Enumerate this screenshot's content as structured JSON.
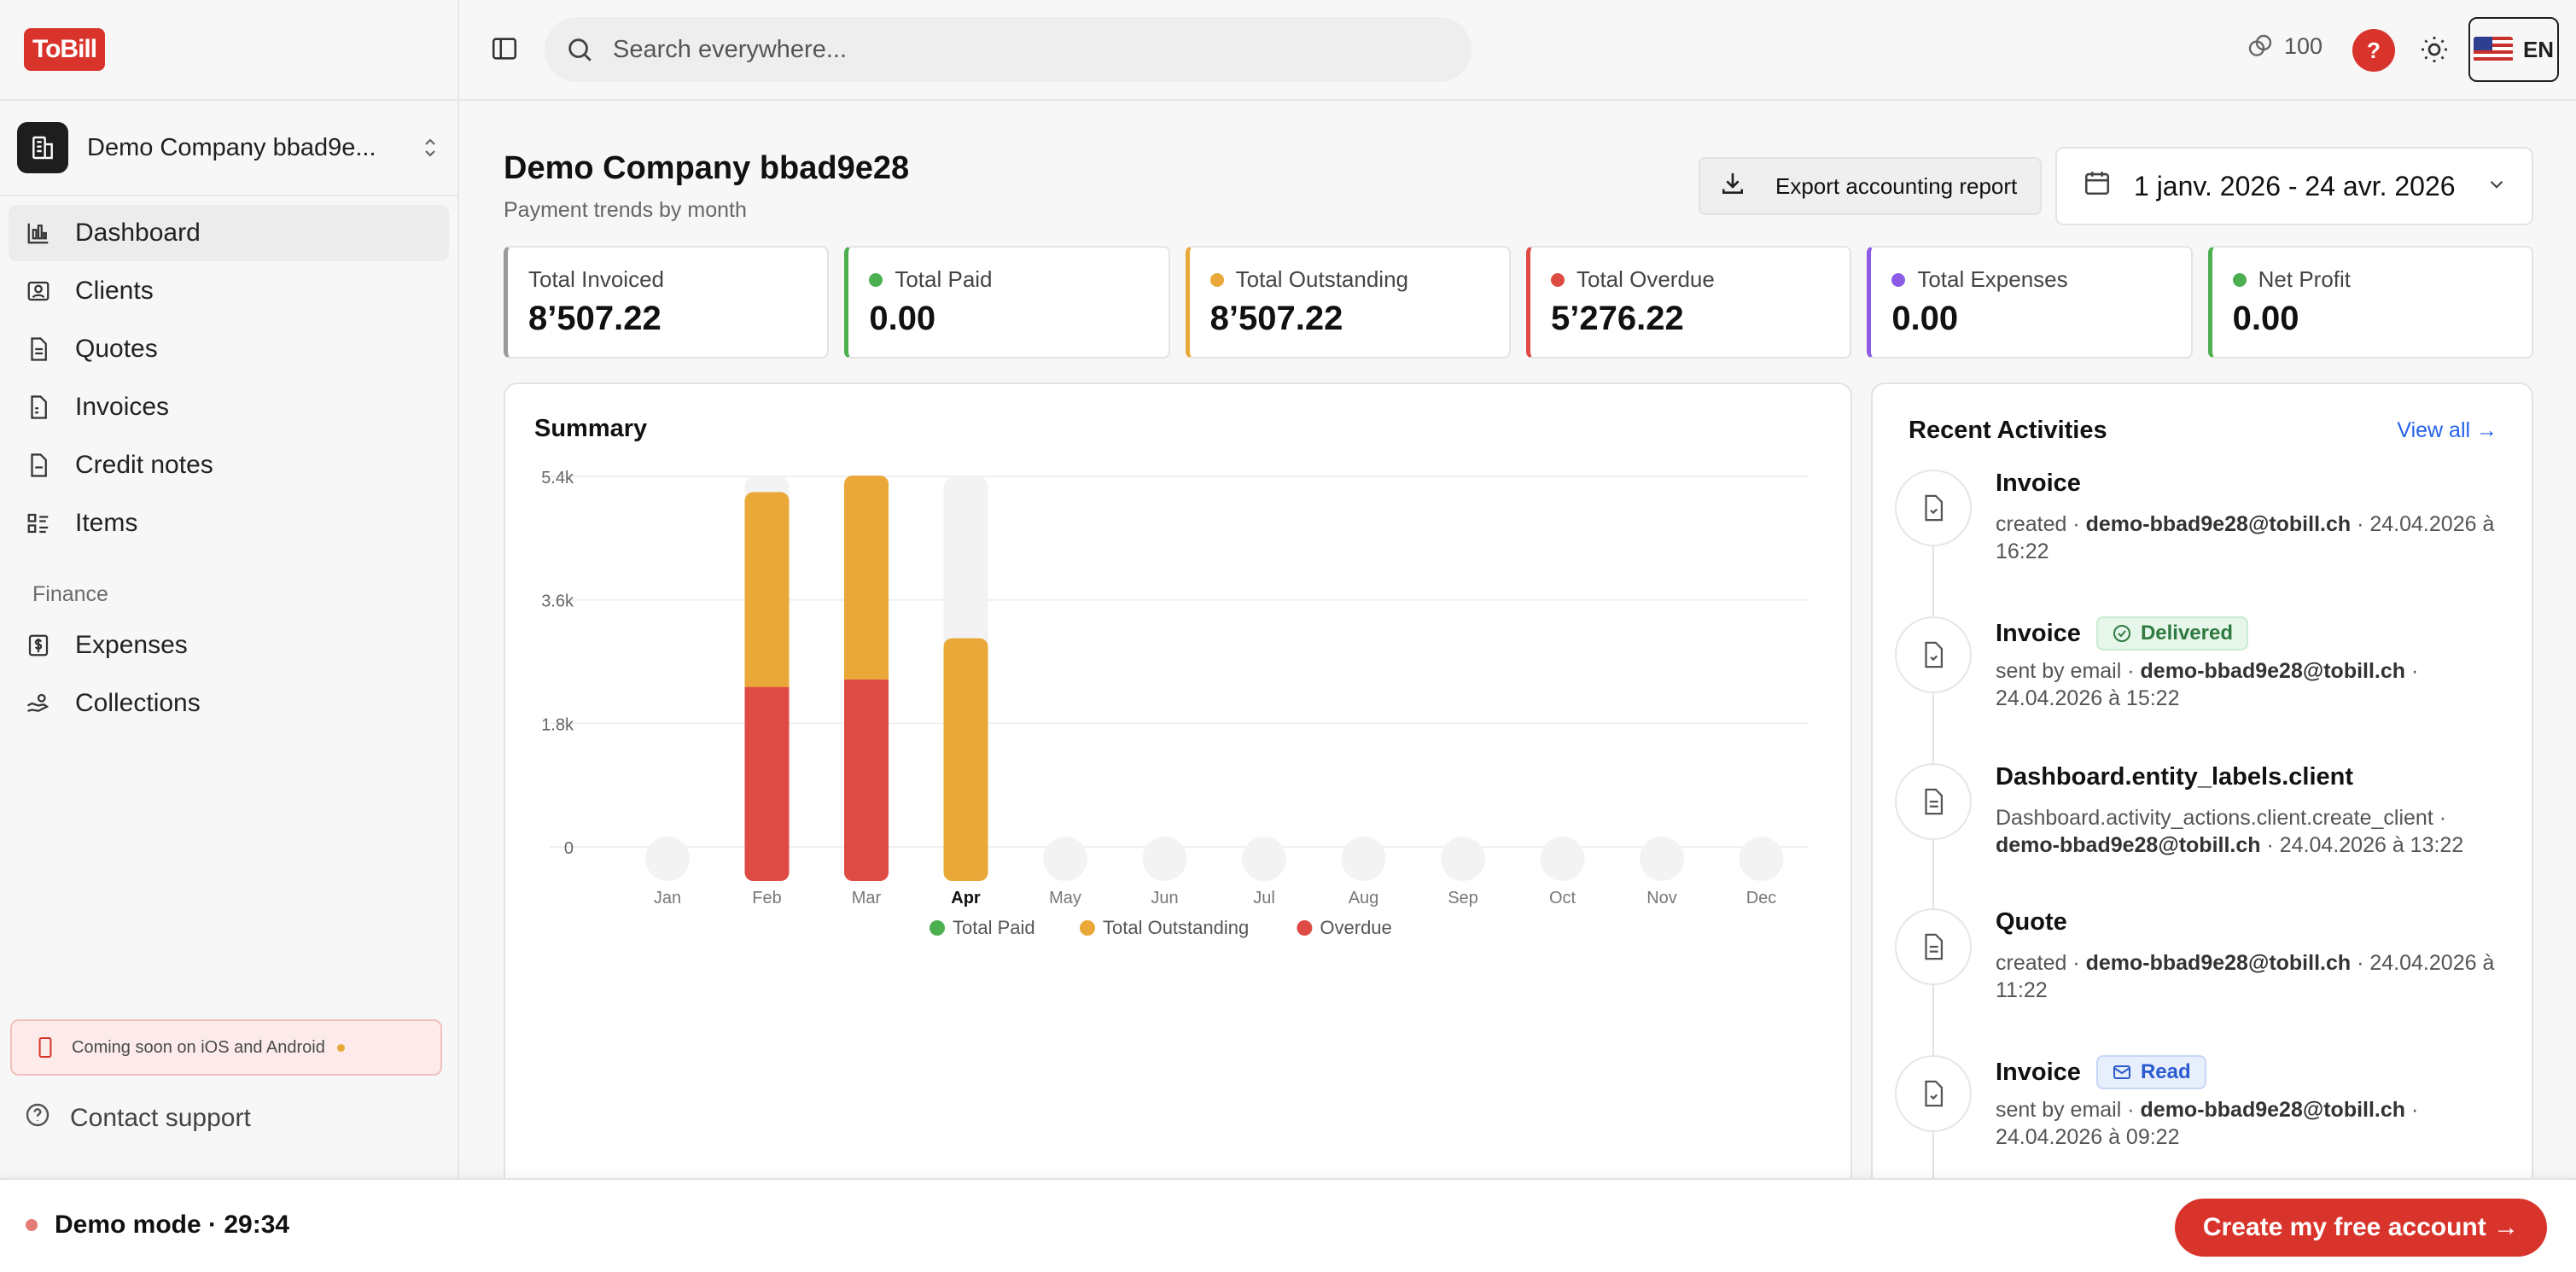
{
  "brand": {
    "logo_text": "ToBill",
    "accent": "#d9342b"
  },
  "company": {
    "name": "Demo Company bbad9e..."
  },
  "sidebar": {
    "items": [
      {
        "label": "Dashboard",
        "icon": "chart-bars-icon",
        "active": true
      },
      {
        "label": "Clients",
        "icon": "contact-card-icon"
      },
      {
        "label": "Quotes",
        "icon": "document-icon"
      },
      {
        "label": "Invoices",
        "icon": "invoice-icon"
      },
      {
        "label": "Credit notes",
        "icon": "credit-note-icon"
      },
      {
        "label": "Items",
        "icon": "list-grid-icon"
      }
    ],
    "finance_label": "Finance",
    "finance_items": [
      {
        "label": "Expenses",
        "icon": "dollar-receipt-icon"
      },
      {
        "label": "Collections",
        "icon": "hand-coins-icon"
      }
    ],
    "coming_soon": "Coming soon on iOS and Android",
    "contact_support": "Contact support"
  },
  "header": {
    "search_placeholder": "Search everywhere...",
    "credits": "100",
    "help_label": "?",
    "language": "EN"
  },
  "main": {
    "title": "Demo Company bbad9e28",
    "subtitle": "Payment trends by month",
    "export_label": "Export accounting report",
    "date_range": "1 janv. 2026 - 24 avr. 2026"
  },
  "kpis": [
    {
      "label": "Total Invoiced",
      "value": "8’507.22",
      "color": "#9a9a9a",
      "dot": false
    },
    {
      "label": "Total Paid",
      "value": "0.00",
      "color": "#4caf50",
      "dot": true
    },
    {
      "label": "Total Outstanding",
      "value": "8’507.22",
      "color": "#e9a838",
      "dot": true
    },
    {
      "label": "Total Overdue",
      "value": "5’276.22",
      "color": "#de4a44",
      "dot": true
    },
    {
      "label": "Total Expenses",
      "value": "0.00",
      "color": "#8e5be6",
      "dot": true
    },
    {
      "label": "Net Profit",
      "value": "0.00",
      "color": "#4caf50",
      "dot": true
    }
  ],
  "summary": {
    "title": "Summary"
  },
  "chart_data": {
    "type": "bar",
    "stacked": true,
    "categories": [
      "Jan",
      "Feb",
      "Mar",
      "Apr",
      "May",
      "Jun",
      "Jul",
      "Aug",
      "Sep",
      "Oct",
      "Nov",
      "Dec"
    ],
    "highlight_category": "Apr",
    "y_ticks": [
      "0",
      "1.8k",
      "3.6k",
      "5.4k"
    ],
    "ylim": [
      0,
      5400
    ],
    "grid": true,
    "legend_position": "bottom",
    "series": [
      {
        "name": "Total Paid",
        "color": "#4caf50",
        "values": [
          0,
          0,
          0,
          0,
          0,
          0,
          0,
          0,
          0,
          0,
          0,
          0
        ]
      },
      {
        "name": "Total Outstanding",
        "color": "#e9a838",
        "values": [
          0,
          2600,
          2720,
          3240,
          0,
          0,
          0,
          0,
          0,
          0,
          0,
          0
        ]
      },
      {
        "name": "Overdue",
        "color": "#de4a44",
        "values": [
          0,
          2590,
          2690,
          0,
          0,
          0,
          0,
          0,
          0,
          0,
          0,
          0
        ]
      }
    ]
  },
  "activities": {
    "title": "Recent Activities",
    "view_all": "View all →",
    "items": [
      {
        "title": "Invoice",
        "icon": "invoice-icon",
        "badge": "",
        "text_pre": "created · ",
        "email": "demo-bbad9e28@tobill.ch",
        "text_post": " · 24.04.2026 à 16:22"
      },
      {
        "title": "Invoice",
        "icon": "invoice-icon",
        "badge": "Delivered",
        "badge_type": "green",
        "text_pre": "sent by email · ",
        "email": "demo-bbad9e28@tobill.ch",
        "text_post": " · 24.04.2026 à 15:22"
      },
      {
        "title": "Dashboard.entity_labels.client",
        "icon": "document-icon",
        "badge": "",
        "text_pre": "Dashboard.activity_actions.client.create_client · ",
        "email": "demo-bbad9e28@tobill.ch",
        "text_post": " · 24.04.2026 à 13:22"
      },
      {
        "title": "Quote",
        "icon": "document-icon",
        "badge": "",
        "text_pre": "created · ",
        "email": "demo-bbad9e28@tobill.ch",
        "text_post": " · 24.04.2026 à 11:22"
      },
      {
        "title": "Invoice",
        "icon": "invoice-icon",
        "badge": "Read",
        "badge_type": "blue",
        "text_pre": "sent by email · ",
        "email": "demo-bbad9e28@tobill.ch",
        "text_post": " · 24.04.2026 à 09:22"
      }
    ]
  },
  "bottom": {
    "demo_mode": "Demo mode · 29:34",
    "cta": "Create my free account →"
  }
}
